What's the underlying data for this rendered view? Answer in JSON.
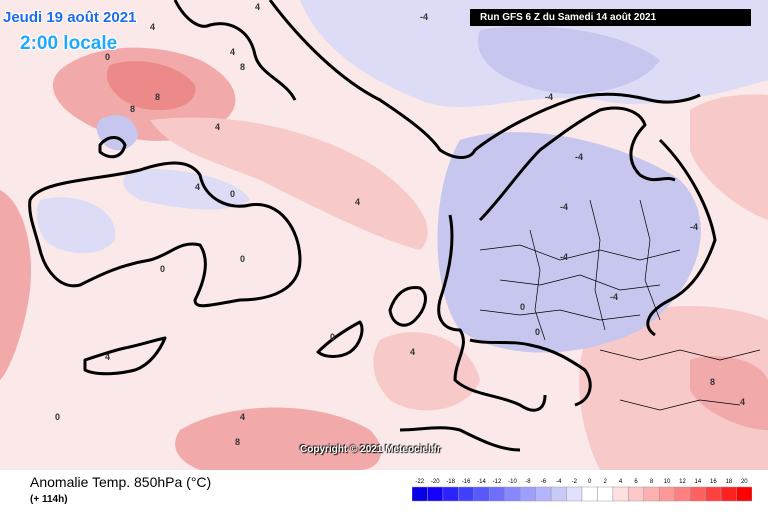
{
  "header": {
    "run_info": "Run GFS 6 Z du Samedi 14 août 2021",
    "valid_date": "Jeudi 19 août 2021",
    "valid_time": "2:00 locale"
  },
  "footer": {
    "title": "Anomalie Temp. 850hPa (°C)",
    "forecast_hour": "(+ 114h)",
    "copyright": "Copyright © 2021 Meteociel.fr"
  },
  "scale": {
    "labels": [
      "-22",
      "-20",
      "-18",
      "-16",
      "-14",
      "-12",
      "-10",
      "-8",
      "-6",
      "-4",
      "-2",
      "0",
      "2",
      "4",
      "6",
      "8",
      "10",
      "12",
      "14",
      "16",
      "18",
      "20"
    ],
    "colors": [
      "#0a00e6",
      "#1500ff",
      "#2a22ff",
      "#4040ff",
      "#5858ff",
      "#6f6fff",
      "#8787ff",
      "#9e9eff",
      "#b5b5ff",
      "#cacaf8",
      "#e0e0ff",
      "#ffffff",
      "#ffffff",
      "#ffe0e0",
      "#ffc8c8",
      "#ffb0b0",
      "#ff9898",
      "#ff8080",
      "#ff6060",
      "#ff4040",
      "#ff2020",
      "#ff0000"
    ]
  },
  "map": {
    "contour_labels": [
      "4",
      "4",
      "4",
      "8",
      "8",
      "8",
      "4",
      "0",
      "0",
      "0",
      "4",
      "4",
      "-4",
      "-4",
      "-4",
      "-4",
      "-4",
      "0",
      "0",
      "4",
      "4",
      "0",
      "0",
      "4",
      "8",
      "8",
      "4",
      "-4",
      "-4",
      "0",
      "0"
    ],
    "colors": {
      "base": "#fbe8e8",
      "warm_light": "#f7c9c9",
      "warm": "#f2a9a9",
      "warm_strong": "#ec8a8a",
      "cool_light": "#dcdcf6",
      "cool": "#c6c6ef",
      "coast": "#000000"
    }
  }
}
